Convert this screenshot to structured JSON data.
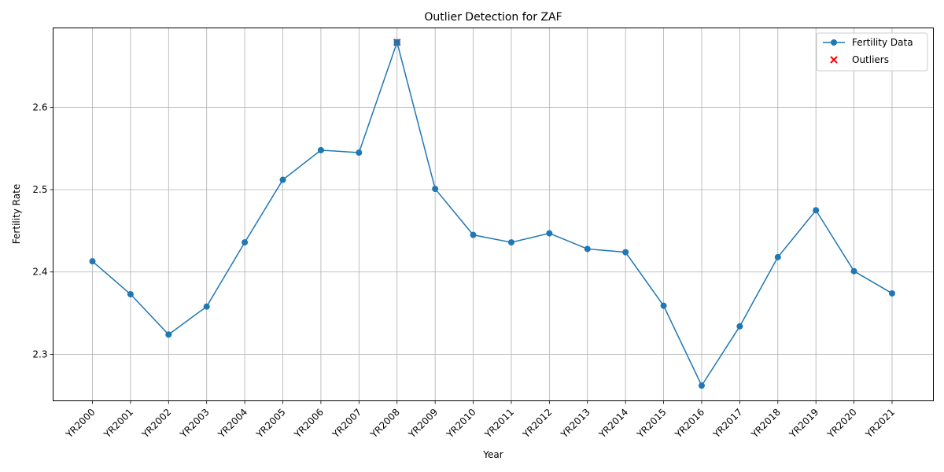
{
  "chart_data": {
    "type": "line",
    "title": "Outlier Detection for ZAF",
    "xlabel": "Year",
    "ylabel": "Fertility Rate",
    "categories": [
      "YR2000",
      "YR2001",
      "YR2002",
      "YR2003",
      "YR2004",
      "YR2005",
      "YR2006",
      "YR2007",
      "YR2008",
      "YR2009",
      "YR2010",
      "YR2011",
      "YR2012",
      "YR2013",
      "YR2014",
      "YR2015",
      "YR2016",
      "YR2017",
      "YR2018",
      "YR2019",
      "YR2020",
      "YR2021"
    ],
    "series": [
      {
        "name": "Fertility Data",
        "color": "#1f77b4",
        "marker": "circle",
        "values": [
          2.413,
          2.373,
          2.324,
          2.358,
          2.436,
          2.512,
          2.548,
          2.545,
          2.679,
          2.501,
          2.445,
          2.436,
          2.447,
          2.428,
          2.424,
          2.359,
          2.262,
          2.334,
          2.418,
          2.475,
          2.401,
          2.374
        ]
      },
      {
        "name": "Outliers",
        "color": "#ff0000",
        "marker": "x",
        "points": [
          {
            "x": "YR2008",
            "y": 2.679
          }
        ]
      }
    ],
    "ylim": [
      2.2435,
      2.6965
    ],
    "yticks": [
      2.3,
      2.4,
      2.5,
      2.6
    ],
    "grid": true,
    "legend_position": "top-right"
  }
}
